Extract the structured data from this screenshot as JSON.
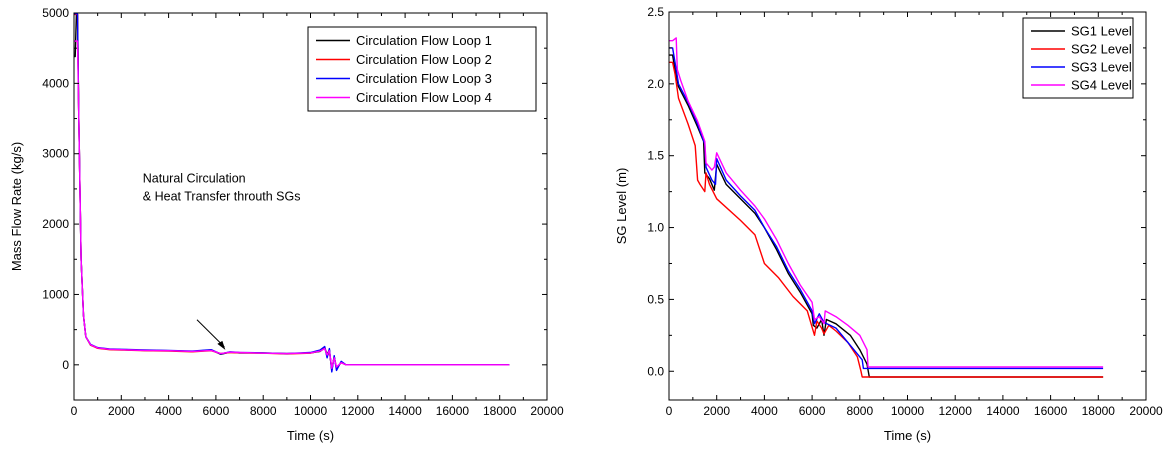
{
  "chart_data": [
    {
      "type": "line",
      "title": "",
      "xlabel": "Time (s)",
      "ylabel": "Mass Flow Rate (kg/s)",
      "xlim": [
        0,
        20000
      ],
      "ylim": [
        -500,
        5000
      ],
      "xticks": [
        0,
        2000,
        4000,
        6000,
        8000,
        10000,
        12000,
        14000,
        16000,
        18000,
        20000
      ],
      "yticks": [
        0,
        1000,
        2000,
        3000,
        4000,
        5000
      ],
      "legend_position": "top-right",
      "annotation": {
        "lines": [
          "Natural Circulation",
          "& Heat Transfer throuth SGs"
        ],
        "points_to": [
          6400,
          170
        ],
        "text_at": [
          4600,
          1200
        ]
      },
      "series": [
        {
          "name": "Circulation Flow Loop 1",
          "color": "#000000",
          "x": [
            0,
            50,
            100,
            150,
            200,
            300,
            400,
            500,
            700,
            1000,
            1500,
            2000,
            3000,
            4000,
            5000,
            5800,
            6200,
            6600,
            7000,
            8000,
            9000,
            10000,
            10400,
            10600,
            10700,
            10800,
            10900,
            11000,
            11100,
            11300,
            11500,
            12000,
            14000,
            16000,
            18400
          ],
          "y": [
            4380,
            4380,
            4980,
            4980,
            3600,
            1500,
            700,
            400,
            280,
            240,
            220,
            215,
            205,
            200,
            190,
            210,
            150,
            180,
            170,
            170,
            160,
            170,
            190,
            240,
            150,
            210,
            -80,
            120,
            -60,
            40,
            0,
            0,
            0,
            0,
            0
          ]
        },
        {
          "name": "Circulation Flow Loop 2",
          "color": "#ff0000",
          "x": [
            0,
            50,
            100,
            150,
            200,
            300,
            400,
            500,
            700,
            1000,
            1500,
            2000,
            3000,
            4000,
            5000,
            5800,
            6200,
            6600,
            7000,
            8000,
            9000,
            10000,
            10400,
            10600,
            10700,
            10800,
            10900,
            11000,
            11100,
            11300,
            11500,
            12000,
            14000,
            16000,
            18400
          ],
          "y": [
            4980,
            4980,
            4980,
            4980,
            3600,
            1500,
            700,
            400,
            280,
            235,
            215,
            210,
            200,
            195,
            185,
            200,
            160,
            175,
            170,
            165,
            155,
            165,
            200,
            250,
            120,
            190,
            -60,
            110,
            -40,
            30,
            0,
            0,
            0,
            0,
            0
          ]
        },
        {
          "name": "Circulation Flow Loop 3",
          "color": "#0000ff",
          "x": [
            0,
            50,
            100,
            150,
            200,
            300,
            400,
            500,
            700,
            1000,
            1500,
            2000,
            3000,
            4000,
            5000,
            5800,
            6200,
            6600,
            7000,
            8000,
            9000,
            10000,
            10400,
            10600,
            10700,
            10800,
            10900,
            11000,
            11100,
            11300,
            11500,
            12000,
            14000,
            16000,
            18400
          ],
          "y": [
            4990,
            4990,
            4990,
            4990,
            3600,
            1500,
            700,
            400,
            290,
            245,
            225,
            220,
            210,
            205,
            195,
            215,
            155,
            185,
            175,
            170,
            160,
            175,
            210,
            260,
            100,
            230,
            -100,
            130,
            -80,
            50,
            0,
            0,
            0,
            0,
            0
          ]
        },
        {
          "name": "Circulation Flow Loop 4",
          "color": "#ff00ff",
          "x": [
            0,
            50,
            100,
            150,
            200,
            300,
            400,
            500,
            700,
            1000,
            1500,
            2000,
            3000,
            4000,
            5000,
            5800,
            6200,
            6600,
            7000,
            8000,
            9000,
            10000,
            10400,
            10600,
            10700,
            10800,
            10900,
            11000,
            11100,
            11300,
            11500,
            12000,
            14000,
            16000,
            18400
          ],
          "y": [
            4600,
            4600,
            4600,
            4600,
            3600,
            1500,
            700,
            400,
            285,
            240,
            220,
            215,
            205,
            200,
            190,
            205,
            160,
            180,
            175,
            165,
            160,
            170,
            195,
            230,
            140,
            200,
            -50,
            100,
            -30,
            30,
            0,
            0,
            0,
            0,
            0
          ]
        }
      ]
    },
    {
      "type": "line",
      "title": "",
      "xlabel": "Time (s)",
      "ylabel": "SG Level (m)",
      "xlim": [
        0,
        20000
      ],
      "ylim": [
        -0.2,
        2.5
      ],
      "xticks": [
        0,
        2000,
        4000,
        6000,
        8000,
        10000,
        12000,
        14000,
        16000,
        18000,
        20000
      ],
      "yticks": [
        0.0,
        0.5,
        1.0,
        1.5,
        2.0,
        2.5
      ],
      "ytick_labels": [
        "0.0",
        "0.5",
        "1.0",
        "1.5",
        "2.0",
        "2.5"
      ],
      "legend_position": "top-right",
      "series": [
        {
          "name": "SG1 Level",
          "color": "#000000",
          "x": [
            0,
            150,
            250,
            400,
            800,
            1200,
            1450,
            1500,
            1700,
            1900,
            2000,
            2400,
            3000,
            3600,
            4000,
            4500,
            5000,
            5500,
            6000,
            6050,
            6200,
            6400,
            6500,
            6600,
            7000,
            7600,
            8000,
            8300,
            8400,
            9000,
            12000,
            15000,
            18200
          ],
          "y": [
            2.2,
            2.2,
            2.1,
            1.98,
            1.85,
            1.7,
            1.6,
            1.38,
            1.34,
            1.26,
            1.44,
            1.3,
            1.2,
            1.1,
            1.0,
            0.85,
            0.68,
            0.55,
            0.4,
            0.32,
            0.3,
            0.36,
            0.25,
            0.36,
            0.33,
            0.25,
            0.15,
            0.05,
            -0.04,
            -0.04,
            -0.04,
            -0.04,
            -0.04
          ]
        },
        {
          "name": "SG2 Level",
          "color": "#ff0000",
          "x": [
            0,
            150,
            250,
            400,
            800,
            1100,
            1200,
            1300,
            1500,
            1550,
            1700,
            2000,
            3000,
            3600,
            4000,
            4600,
            5200,
            5800,
            6100,
            6200,
            6400,
            6500,
            6700,
            7000,
            7500,
            7900,
            8050,
            8100,
            9000,
            12000,
            15000,
            18200
          ],
          "y": [
            2.15,
            2.15,
            2.07,
            1.9,
            1.72,
            1.57,
            1.33,
            1.3,
            1.25,
            1.38,
            1.3,
            1.2,
            1.05,
            0.95,
            0.75,
            0.65,
            0.52,
            0.42,
            0.25,
            0.35,
            0.3,
            0.26,
            0.32,
            0.28,
            0.2,
            0.1,
            0.0,
            -0.04,
            -0.04,
            -0.04,
            -0.04,
            -0.04
          ]
        },
        {
          "name": "SG3 Level",
          "color": "#0000ff",
          "x": [
            0,
            150,
            250,
            400,
            800,
            1200,
            1500,
            1550,
            1800,
            1950,
            2000,
            2400,
            3000,
            3600,
            4000,
            4500,
            5000,
            5500,
            6000,
            6100,
            6300,
            6500,
            7000,
            7500,
            7800,
            8100,
            8150,
            9000,
            12000,
            15000,
            18200
          ],
          "y": [
            2.25,
            2.25,
            2.15,
            2.0,
            1.87,
            1.72,
            1.58,
            1.42,
            1.33,
            1.3,
            1.48,
            1.33,
            1.22,
            1.12,
            1.0,
            0.87,
            0.7,
            0.57,
            0.42,
            0.33,
            0.4,
            0.34,
            0.3,
            0.2,
            0.14,
            0.08,
            0.02,
            0.02,
            0.02,
            0.02,
            0.02
          ]
        },
        {
          "name": "SG4 Level",
          "color": "#ff00ff",
          "x": [
            0,
            150,
            300,
            350,
            500,
            800,
            1200,
            1500,
            1550,
            1800,
            1900,
            2000,
            2400,
            3000,
            3600,
            4000,
            4500,
            5000,
            5500,
            6000,
            6100,
            6300,
            6500,
            6550,
            7000,
            7500,
            8000,
            8300,
            8350,
            9000,
            12000,
            15000,
            18200
          ],
          "y": [
            2.3,
            2.3,
            2.32,
            2.1,
            2.02,
            1.88,
            1.74,
            1.6,
            1.45,
            1.4,
            1.42,
            1.52,
            1.38,
            1.26,
            1.15,
            1.06,
            0.92,
            0.75,
            0.6,
            0.48,
            0.36,
            0.38,
            0.33,
            0.42,
            0.38,
            0.32,
            0.25,
            0.15,
            0.03,
            0.03,
            0.03,
            0.03,
            0.03
          ]
        }
      ]
    }
  ]
}
